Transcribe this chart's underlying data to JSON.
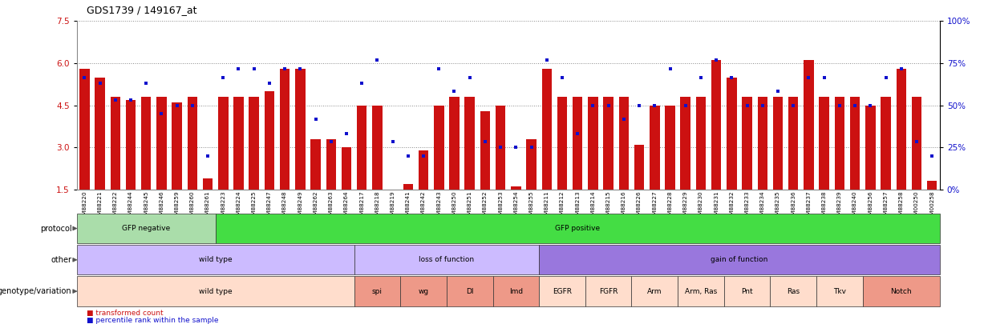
{
  "title": "GDS1739 / 149167_at",
  "bar_values": [
    5.8,
    5.5,
    4.8,
    4.7,
    4.8,
    4.8,
    4.6,
    4.8,
    1.9,
    4.8,
    4.8,
    4.8,
    5.0,
    5.8,
    5.8,
    3.3,
    3.3,
    3.0,
    4.5,
    4.5,
    1.5,
    1.7,
    2.9,
    4.5,
    4.8,
    4.8,
    4.3,
    4.5,
    1.6,
    3.3,
    5.8,
    4.8,
    4.8,
    4.8,
    4.8,
    4.8,
    3.1,
    4.5,
    4.5,
    4.8,
    4.8,
    6.1,
    5.5,
    4.8,
    4.8,
    4.8,
    4.8,
    6.1,
    4.8,
    4.8,
    4.8,
    4.5,
    4.8,
    5.8,
    4.8,
    1.8
  ],
  "dot_values": [
    5.5,
    5.3,
    4.7,
    4.7,
    5.3,
    4.2,
    4.5,
    4.5,
    2.7,
    5.5,
    5.8,
    5.8,
    5.3,
    5.8,
    5.8,
    4.0,
    3.2,
    3.5,
    5.3,
    6.1,
    3.2,
    2.7,
    2.7,
    5.8,
    5.0,
    5.5,
    3.2,
    3.0,
    3.0,
    3.0,
    6.1,
    5.5,
    3.5,
    4.5,
    4.5,
    4.0,
    4.5,
    4.5,
    5.8,
    4.5,
    5.5,
    6.1,
    5.5,
    4.5,
    4.5,
    5.0,
    4.5,
    5.5,
    5.5,
    4.5,
    4.5,
    4.5,
    5.5,
    5.8,
    3.2,
    2.7
  ],
  "sample_labels": [
    "GSM88220",
    "GSM88221",
    "GSM88222",
    "GSM88244",
    "GSM88245",
    "GSM88246",
    "GSM88259",
    "GSM88260",
    "GSM88261",
    "GSM88223",
    "GSM88224",
    "GSM88225",
    "GSM88247",
    "GSM88248",
    "GSM88249",
    "GSM88262",
    "GSM88263",
    "GSM88264",
    "GSM88217",
    "GSM88218",
    "GSM88219",
    "GSM88241",
    "GSM88242",
    "GSM88243",
    "GSM88250",
    "GSM88251",
    "GSM88252",
    "GSM88253",
    "GSM88254",
    "GSM88255",
    "GSM88211",
    "GSM88212",
    "GSM88213",
    "GSM88214",
    "GSM88215",
    "GSM88216",
    "GSM88226",
    "GSM88227",
    "GSM88228",
    "GSM88229",
    "GSM88230",
    "GSM88231",
    "GSM88232",
    "GSM88233",
    "GSM88234",
    "GSM88235",
    "GSM88236",
    "GSM88237",
    "GSM88238",
    "GSM88239",
    "GSM88240",
    "GSM88256",
    "GSM88257",
    "GSM88258",
    "GSM00250",
    "GSM00258"
  ],
  "n_samples": 56,
  "ylim": [
    1.5,
    7.5
  ],
  "yticks_left": [
    1.5,
    3.0,
    4.5,
    6.0,
    7.5
  ],
  "yticks_right_pct": [
    0,
    25,
    50,
    75,
    100
  ],
  "bar_color": "#cc1111",
  "dot_color": "#1111cc",
  "protocol_groups": [
    {
      "text": "GFP negative",
      "start": 0,
      "end": 9,
      "color": "#aaddaa"
    },
    {
      "text": "GFP positive",
      "start": 9,
      "end": 56,
      "color": "#44dd44"
    }
  ],
  "other_groups": [
    {
      "text": "wild type",
      "start": 0,
      "end": 18,
      "color": "#ccbbff"
    },
    {
      "text": "loss of function",
      "start": 18,
      "end": 30,
      "color": "#ccbbff"
    },
    {
      "text": "gain of function",
      "start": 30,
      "end": 56,
      "color": "#9977dd"
    }
  ],
  "genotype_groups": [
    {
      "text": "wild type",
      "start": 0,
      "end": 18,
      "color": "#ffddcc"
    },
    {
      "text": "spi",
      "start": 18,
      "end": 21,
      "color": "#ee9988"
    },
    {
      "text": "wg",
      "start": 21,
      "end": 24,
      "color": "#ee9988"
    },
    {
      "text": "Dl",
      "start": 24,
      "end": 27,
      "color": "#ee9988"
    },
    {
      "text": "Imd",
      "start": 27,
      "end": 30,
      "color": "#ee9988"
    },
    {
      "text": "EGFR",
      "start": 30,
      "end": 33,
      "color": "#ffddcc"
    },
    {
      "text": "FGFR",
      "start": 33,
      "end": 36,
      "color": "#ffddcc"
    },
    {
      "text": "Arm",
      "start": 36,
      "end": 39,
      "color": "#ffddcc"
    },
    {
      "text": "Arm, Ras",
      "start": 39,
      "end": 42,
      "color": "#ffddcc"
    },
    {
      "text": "Pnt",
      "start": 42,
      "end": 45,
      "color": "#ffddcc"
    },
    {
      "text": "Ras",
      "start": 45,
      "end": 48,
      "color": "#ffddcc"
    },
    {
      "text": "Tkv",
      "start": 48,
      "end": 51,
      "color": "#ffddcc"
    },
    {
      "text": "Notch",
      "start": 51,
      "end": 56,
      "color": "#ee9988"
    }
  ],
  "protocol_label": "protocol",
  "other_label": "other",
  "genotype_label": "genotype/variation",
  "legend_bar_text": "transformed count",
  "legend_dot_text": "percentile rank within the sample",
  "bg_color": "#ffffff",
  "grid_color": "#888888"
}
